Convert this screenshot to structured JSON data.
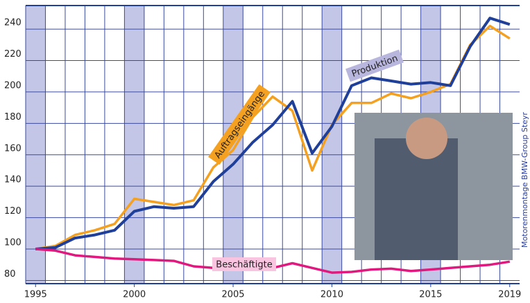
{
  "chart_data": {
    "type": "line",
    "x": [
      1995,
      1996,
      1997,
      1998,
      1999,
      2000,
      2001,
      2002,
      2003,
      2004,
      2005,
      2006,
      2007,
      2008,
      2009,
      2010,
      2011,
      2012,
      2013,
      2014,
      2015,
      2016,
      2017,
      2018,
      2019
    ],
    "series": [
      {
        "name": "Auftragseingänge",
        "color": "#f4a020",
        "values": [
          100,
          102,
          109,
          112,
          116,
          132,
          130,
          128,
          131,
          152,
          163,
          184,
          197,
          188,
          150,
          179,
          193,
          193,
          199,
          196,
          200,
          205,
          230,
          242,
          234
        ]
      },
      {
        "name": "Produktion",
        "color": "#1f3f99",
        "values": [
          100,
          101,
          107,
          109,
          112,
          124,
          127,
          126,
          127,
          143,
          154,
          168,
          179,
          194,
          161,
          178,
          204,
          209,
          207,
          205,
          206,
          204,
          229,
          247,
          243
        ]
      },
      {
        "name": "Beschäftigte",
        "color": "#e0197e",
        "values": [
          100,
          99,
          96,
          95,
          94,
          93.5,
          93,
          92.5,
          89,
          88,
          88.5,
          87.5,
          88,
          91,
          88,
          85,
          85.5,
          87,
          87.5,
          86,
          87,
          88,
          89,
          90,
          92
        ]
      }
    ],
    "xlim": [
      1994.5,
      2019.5
    ],
    "xticks": [
      1995,
      2000,
      2005,
      2010,
      2015,
      2019
    ],
    "ylim": [
      78,
      255
    ],
    "yticks": [
      80,
      100,
      120,
      140,
      160,
      180,
      200,
      220,
      240
    ],
    "highlight_bands": [
      1995,
      2000,
      2005,
      2010,
      2015
    ],
    "grid": true,
    "credit": "Motorenmontage BMW-Group Steyr"
  }
}
